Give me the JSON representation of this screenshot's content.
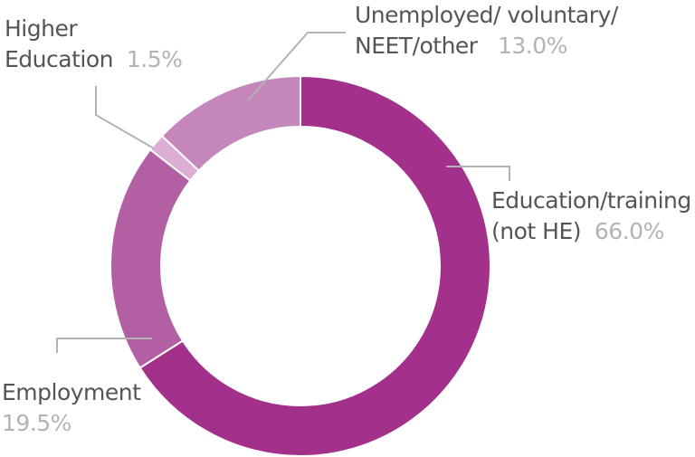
{
  "chart_data": {
    "type": "pie",
    "style": "donut",
    "title": "",
    "legend": "none",
    "categories": [
      "Education/training (not HE)",
      "Employment",
      "Higher Education",
      "Unemployed/ voluntary/ NEET/other"
    ],
    "values": [
      66.0,
      19.5,
      1.5,
      13.0
    ],
    "value_labels": [
      "66.0%",
      "19.5%",
      "1.5%",
      "13.0%"
    ],
    "colors": [
      "#a3308a",
      "#b35fa3",
      "#dcaed3",
      "#c587bb"
    ],
    "label_lines": {
      "education": [
        "Education/training",
        "(not HE)"
      ],
      "employment": [
        "Employment"
      ],
      "higher": [
        "Higher",
        "Education"
      ],
      "unemployed": [
        "Unemployed/ voluntary/",
        "NEET/other"
      ]
    }
  }
}
